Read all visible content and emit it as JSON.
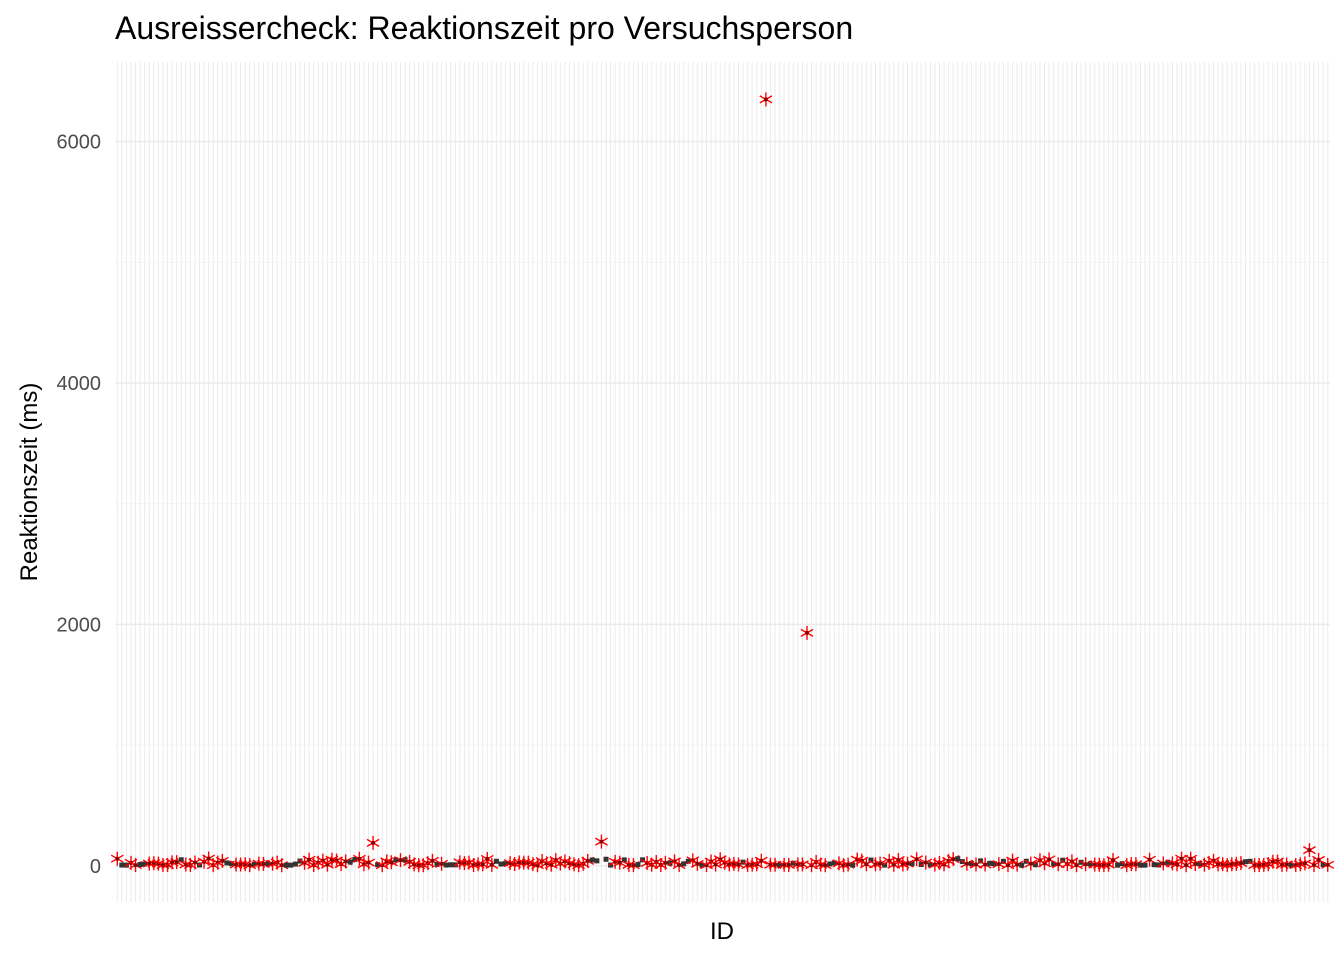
{
  "chart_data": {
    "type": "scatter",
    "title": "Ausreissercheck: Reaktionszeit pro Versuchsperson",
    "xlabel": "ID",
    "ylabel": "Reaktionszeit (ms)",
    "ylim": [
      -300,
      6660
    ],
    "y_ticks": [
      0,
      2000,
      4000,
      6000
    ],
    "y_minor_ticks": [
      1000,
      3000,
      5000
    ],
    "grid": true,
    "x_tick_labels_shown": false,
    "n_ids": 266,
    "colors": {
      "point": "#333333",
      "flag_outline": "#ff0000",
      "flag_center": "#8b0000",
      "grid": "#ebebeb"
    },
    "outliers": [
      {
        "id": 57,
        "value": 190
      },
      {
        "id": 107,
        "value": 200
      },
      {
        "id": 143,
        "value": 6350
      },
      {
        "id": 152,
        "value": 1930
      },
      {
        "id": 262,
        "value": 130
      }
    ]
  }
}
